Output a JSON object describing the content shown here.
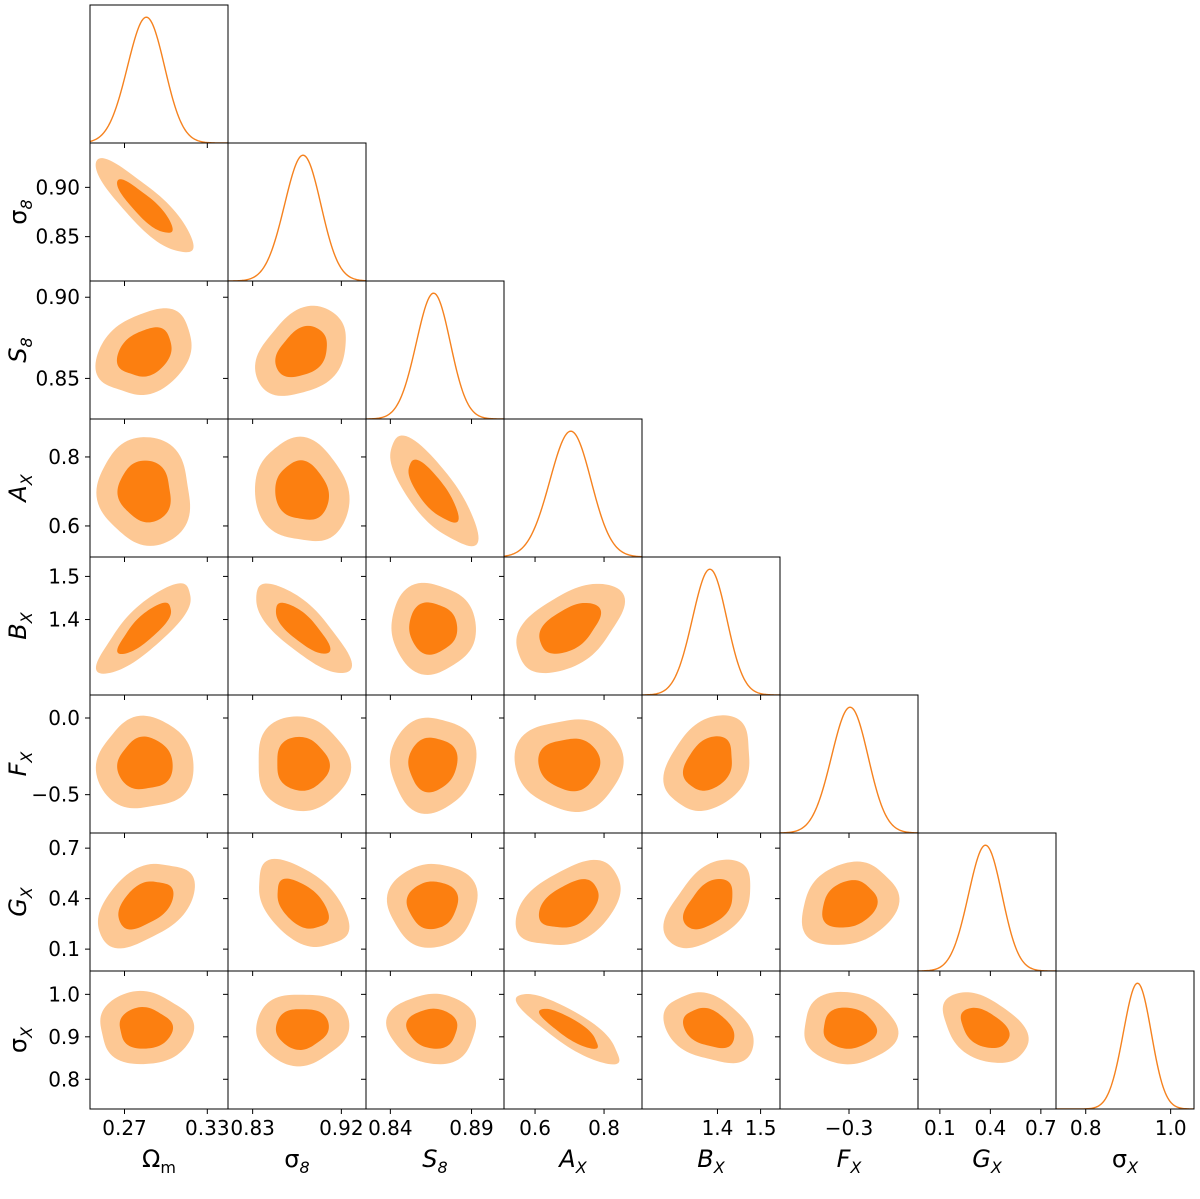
{
  "chart_data": {
    "type": "corner",
    "parameters": [
      {
        "key": "Om",
        "label": "Ωm",
        "mean": 0.285,
        "sigma": 0.0135,
        "range": [
          0.245,
          0.345
        ],
        "ticks": [
          0.27,
          0.33
        ],
        "tick_labels": [
          "0.27",
          "0.33"
        ]
      },
      {
        "key": "sigma8",
        "label": "σ8",
        "mean": 0.88,
        "sigma": 0.0185,
        "range": [
          0.805,
          0.945
        ],
        "ticks": [
          0.85,
          0.9
        ],
        "tick_labels": [
          "0.85",
          "0.90"
        ],
        "x_ticks": [
          0.83,
          0.92
        ],
        "x_tick_labels": [
          "0.83",
          "0.92"
        ]
      },
      {
        "key": "S8",
        "label": "S8",
        "mean": 0.866,
        "sigma": 0.0105,
        "range": [
          0.825,
          0.91
        ],
        "ticks": [
          0.85,
          0.9
        ],
        "tick_labels": [
          "0.85",
          "0.90"
        ],
        "x_ticks": [
          0.84,
          0.89
        ],
        "x_tick_labels": [
          "0.84",
          "0.89"
        ]
      },
      {
        "key": "AX",
        "label": "AX",
        "mean": 0.7,
        "sigma": 0.06,
        "range": [
          0.51,
          0.91
        ],
        "ticks": [
          0.6,
          0.8
        ],
        "tick_labels": [
          "0.6",
          "0.8"
        ]
      },
      {
        "key": "BX",
        "label": "BX",
        "mean": 1.38,
        "sigma": 0.04,
        "range": [
          1.225,
          1.545
        ],
        "ticks": [
          1.4,
          1.5
        ],
        "tick_labels": [
          "1.4",
          "1.5"
        ]
      },
      {
        "key": "FX",
        "label": "FX",
        "mean": -0.3,
        "sigma": 0.12,
        "range": [
          -0.75,
          0.15
        ],
        "ticks": [
          -0.5,
          0.0
        ],
        "tick_labels": [
          "−0.5",
          "0.0"
        ],
        "x_ticks": [
          -0.3
        ],
        "x_tick_labels": [
          "−0.3"
        ]
      },
      {
        "key": "GX",
        "label": "GX",
        "mean": 0.365,
        "sigma": 0.1,
        "range": [
          -0.03,
          0.79
        ],
        "ticks": [
          0.1,
          0.4,
          0.7
        ],
        "tick_labels": [
          "0.1",
          "0.4",
          "0.7"
        ]
      },
      {
        "key": "sigmaX",
        "label": "σX",
        "mean": 0.92,
        "sigma": 0.033,
        "range": [
          0.73,
          1.055
        ],
        "ticks": [
          0.8,
          0.9,
          1.0
        ],
        "tick_labels": [
          "0.8",
          "0.9",
          "1.0"
        ],
        "x_ticks": [
          0.8,
          1.0
        ],
        "x_tick_labels": [
          "0.8",
          "1.0"
        ]
      }
    ],
    "correlations": [
      [
        1.0,
        -0.85,
        0.3,
        -0.05,
        0.8,
        0.0,
        0.45,
        0.0
      ],
      [
        -0.85,
        1.0,
        0.3,
        -0.15,
        -0.75,
        0.0,
        -0.5,
        0.0
      ],
      [
        0.3,
        0.3,
        1.0,
        -0.75,
        0.0,
        0.0,
        0.0,
        0.0
      ],
      [
        -0.05,
        -0.15,
        -0.75,
        1.0,
        0.45,
        0.0,
        0.45,
        -0.85
      ],
      [
        0.8,
        -0.75,
        0.0,
        0.45,
        1.0,
        0.3,
        0.45,
        -0.35
      ],
      [
        0.0,
        0.0,
        0.0,
        0.0,
        0.3,
        1.0,
        0.2,
        0.0
      ],
      [
        0.45,
        -0.5,
        0.0,
        0.45,
        0.45,
        0.2,
        1.0,
        -0.45
      ],
      [
        0.0,
        0.0,
        0.0,
        -0.85,
        -0.35,
        0.0,
        -0.45,
        1.0
      ]
    ],
    "contour_levels": [
      "68%",
      "95%"
    ],
    "colors": {
      "inner": "#fc7f10",
      "outer": "#fdc894",
      "line": "#f5821f",
      "frame": "#000000"
    },
    "grid": false,
    "legend": "none"
  }
}
